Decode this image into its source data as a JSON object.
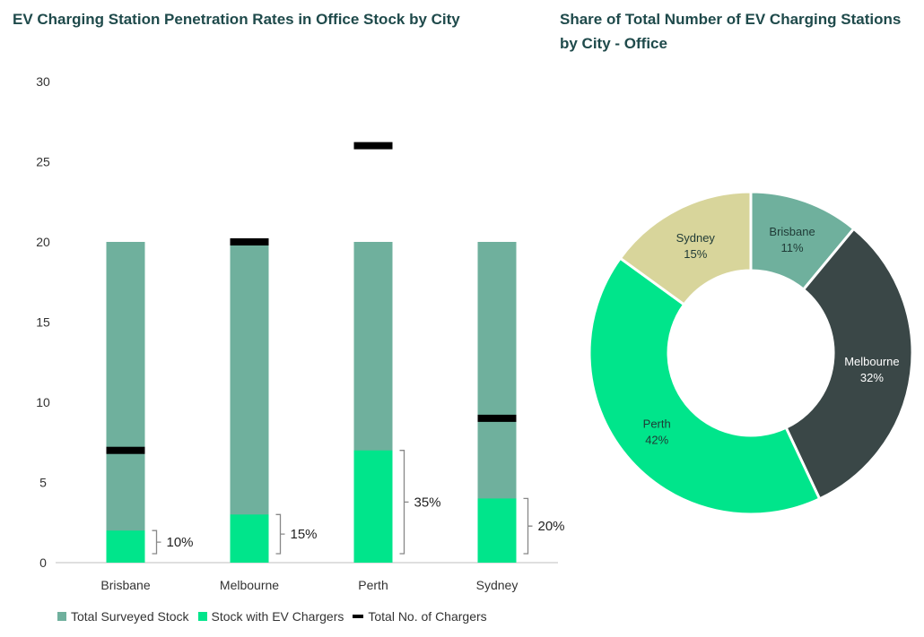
{
  "colors": {
    "total_surveyed": "#6fb09d",
    "with_chargers": "#00e58b",
    "chargers_marker": "#000000",
    "slice_brisbane": "#6fb09d",
    "slice_melbourne": "#3a4747",
    "slice_perth": "#00e58b",
    "slice_sydney": "#d8d59b"
  },
  "chart_data": [
    {
      "type": "bar",
      "title": "EV Charging Station Penetration Rates in Office Stock by City",
      "categories": [
        "Brisbane",
        "Melbourne",
        "Perth",
        "Sydney"
      ],
      "ylim": [
        0,
        30
      ],
      "yticks": [
        "0",
        "5",
        "10",
        "15",
        "20",
        "25",
        "30"
      ],
      "series": [
        {
          "name": "Total Surveyed Stock",
          "values": [
            20,
            20,
            20,
            20
          ]
        },
        {
          "name": "Stock with EV Chargers",
          "values": [
            2,
            3,
            7,
            4
          ]
        },
        {
          "name": "Total No. of Chargers",
          "values": [
            7,
            20,
            26,
            9
          ]
        }
      ],
      "annotations": [
        "10%",
        "15%",
        "35%",
        "20%"
      ],
      "legend": "bottom"
    },
    {
      "type": "pie",
      "title": "Share of Total Number of EV Charging Stations by City - Office",
      "labels": [
        "Brisbane",
        "Melbourne",
        "Perth",
        "Sydney"
      ],
      "values": [
        11,
        32,
        42,
        15
      ],
      "value_labels": [
        "11%",
        "32%",
        "42%",
        "15%"
      ]
    }
  ]
}
